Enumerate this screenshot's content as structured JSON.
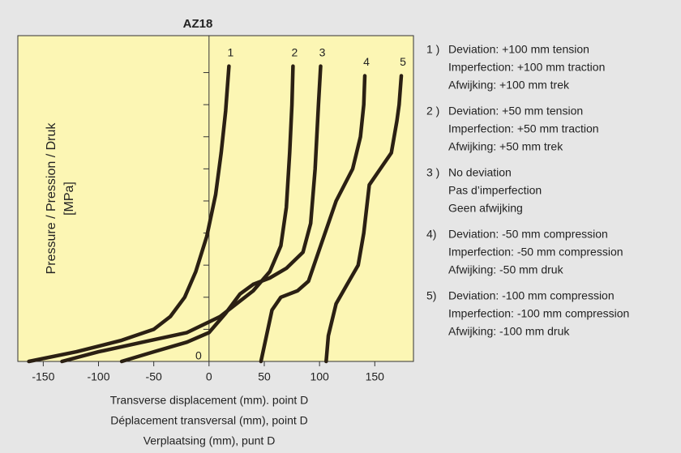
{
  "chart_data": {
    "type": "line",
    "title": "AZ18",
    "ylabel": [
      "Pressure / Pression / Druk",
      "[MPa]"
    ],
    "xlabel": [
      "Transverse displacement (mm). point D",
      "Déplacement transversal (mm), point D",
      "Verplaatsing (mm), punt D"
    ],
    "xlim": [
      -173,
      185
    ],
    "ylim": [
      0,
      10.15
    ],
    "xticks": [
      -150,
      -100,
      -50,
      0,
      50,
      100,
      150
    ],
    "yticks": [
      0
    ],
    "y_minor_ticks": [
      1,
      2,
      3,
      4,
      5,
      6,
      7,
      8,
      9
    ],
    "series": [
      {
        "name": "1",
        "color": "#2b2013",
        "x": [
          -163,
          -120,
          -79,
          -50,
          -35,
          -22,
          -12,
          -2,
          6,
          11,
          15,
          18
        ],
        "values": [
          0,
          0.3,
          0.66,
          1.0,
          1.4,
          2.0,
          2.8,
          3.9,
          5.2,
          6.5,
          7.8,
          9.2
        ]
      },
      {
        "name": "2",
        "color": "#2b2013",
        "x": [
          -133,
          -100,
          -60,
          -20,
          10,
          40,
          55,
          65,
          70,
          73,
          75,
          76
        ],
        "values": [
          0,
          0.3,
          0.6,
          0.9,
          1.4,
          2.2,
          2.8,
          3.6,
          4.8,
          6.5,
          8,
          9.2
        ]
      },
      {
        "name": "3",
        "color": "#2b2013",
        "x": [
          -79,
          -50,
          -20,
          0,
          15,
          28,
          40,
          55,
          70,
          85,
          92,
          96,
          99,
          101
        ],
        "values": [
          0,
          0.3,
          0.6,
          0.9,
          1.5,
          2.1,
          2.4,
          2.6,
          2.9,
          3.4,
          4.3,
          6,
          8,
          9.2
        ]
      },
      {
        "name": "4",
        "color": "#2b2013",
        "x": [
          47,
          52,
          57,
          65,
          80,
          90,
          100,
          115,
          130,
          137,
          140,
          141
        ],
        "values": [
          0,
          0.8,
          1.6,
          2.0,
          2.2,
          2.5,
          3.5,
          5,
          6,
          7,
          8,
          8.9
        ]
      },
      {
        "name": "5",
        "color": "#2b2013",
        "x": [
          106,
          108,
          115,
          125,
          135,
          140,
          145,
          155,
          165,
          170,
          172,
          174
        ],
        "values": [
          0,
          0.8,
          1.8,
          2.4,
          3,
          4,
          5.5,
          6,
          6.5,
          7.5,
          8,
          8.9
        ]
      }
    ],
    "legend_notes": [
      {
        "key": "1 )",
        "lines": [
          "Deviation: +100 mm tension",
          "Imperfection: +100 mm traction",
          "Afwijking: +100 mm trek"
        ]
      },
      {
        "key": "2 )",
        "lines": [
          "Deviation: +50 mm tension",
          "Imperfection: +50 mm traction",
          "Afwijking: +50 mm trek"
        ]
      },
      {
        "key": "3 )",
        "lines": [
          "No deviation",
          "Pas d’imperfection",
          "Geen afwijking"
        ]
      },
      {
        "key": "4)",
        "lines": [
          "Deviation: -50 mm compression",
          "Imperfection: -50 mm compression",
          "Afwijking: -50 mm druk"
        ]
      },
      {
        "key": "5)",
        "lines": [
          "Deviation: -100 mm compression",
          "Imperfection: -100 mm compression",
          "Afwijking: -100 mm druk"
        ]
      }
    ]
  }
}
